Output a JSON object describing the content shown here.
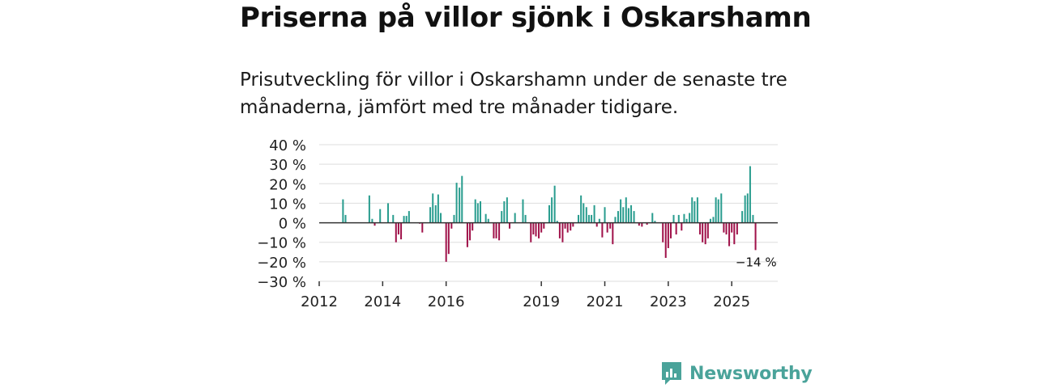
{
  "title": "Priserna på villor sjönk i Oskarshamn",
  "subtitle": "Prisutveckling för villor i Oskarshamn under de senaste tre månaderna, jämfört med tre månader tidigare.",
  "brand": {
    "name": "Newsworthy",
    "icon": "newsworthy-logo-icon"
  },
  "colors": {
    "positive": "#2a9d8f",
    "negative": "#a0124a",
    "grid": "#dddddd",
    "zero": "#333333",
    "brand": "#4aa39a"
  },
  "chart_data": {
    "type": "bar",
    "title": "Priserna på villor sjönk i Oskarshamn",
    "xlabel": "",
    "ylabel": "",
    "ylim": [
      -30,
      40
    ],
    "y_ticks": [
      40,
      30,
      20,
      10,
      0,
      -10,
      -20,
      -30
    ],
    "y_tick_labels": [
      "40 %",
      "30 %",
      "20 %",
      "10 %",
      "0 %",
      "−10 %",
      "−20 %",
      "−30 %"
    ],
    "x_ticks": [
      2012,
      2014,
      2016,
      2019,
      2021,
      2023,
      2025
    ],
    "x_tick_labels": [
      "2012",
      "2014",
      "2016",
      "2019",
      "2021",
      "2023",
      "2025"
    ],
    "last_value_label": "−14 %",
    "grid": true,
    "series": [
      {
        "name": "Prisutveckling",
        "points": [
          {
            "x": 2012.75,
            "y": 12
          },
          {
            "x": 2012.83,
            "y": 4
          },
          {
            "x": 2013.58,
            "y": 14
          },
          {
            "x": 2013.67,
            "y": 2
          },
          {
            "x": 2013.75,
            "y": -1.5
          },
          {
            "x": 2013.92,
            "y": 7
          },
          {
            "x": 2014.17,
            "y": 10
          },
          {
            "x": 2014.33,
            "y": 4
          },
          {
            "x": 2014.42,
            "y": -10
          },
          {
            "x": 2014.5,
            "y": -6
          },
          {
            "x": 2014.58,
            "y": -8.5
          },
          {
            "x": 2014.67,
            "y": 3.5
          },
          {
            "x": 2014.75,
            "y": 3.5
          },
          {
            "x": 2014.83,
            "y": 6
          },
          {
            "x": 2015.17,
            "y": -0.5
          },
          {
            "x": 2015.25,
            "y": -5
          },
          {
            "x": 2015.5,
            "y": 8
          },
          {
            "x": 2015.58,
            "y": 15
          },
          {
            "x": 2015.67,
            "y": 9
          },
          {
            "x": 2015.75,
            "y": 14.5
          },
          {
            "x": 2015.83,
            "y": 5
          },
          {
            "x": 2016.0,
            "y": -20
          },
          {
            "x": 2016.08,
            "y": -16
          },
          {
            "x": 2016.17,
            "y": -3
          },
          {
            "x": 2016.25,
            "y": 4
          },
          {
            "x": 2016.33,
            "y": 20.5
          },
          {
            "x": 2016.42,
            "y": 18
          },
          {
            "x": 2016.5,
            "y": 24
          },
          {
            "x": 2016.67,
            "y": -12.5
          },
          {
            "x": 2016.75,
            "y": -9
          },
          {
            "x": 2016.83,
            "y": -4
          },
          {
            "x": 2016.92,
            "y": 12
          },
          {
            "x": 2017.0,
            "y": 10
          },
          {
            "x": 2017.08,
            "y": 11
          },
          {
            "x": 2017.25,
            "y": 4.5
          },
          {
            "x": 2017.33,
            "y": 2
          },
          {
            "x": 2017.5,
            "y": -8
          },
          {
            "x": 2017.58,
            "y": -8
          },
          {
            "x": 2017.67,
            "y": -9
          },
          {
            "x": 2017.75,
            "y": 6
          },
          {
            "x": 2017.83,
            "y": 11
          },
          {
            "x": 2017.92,
            "y": 13
          },
          {
            "x": 2018.0,
            "y": -3
          },
          {
            "x": 2018.17,
            "y": 5
          },
          {
            "x": 2018.42,
            "y": 12
          },
          {
            "x": 2018.5,
            "y": 4
          },
          {
            "x": 2018.67,
            "y": -10
          },
          {
            "x": 2018.75,
            "y": -6
          },
          {
            "x": 2018.83,
            "y": -7
          },
          {
            "x": 2018.92,
            "y": -8
          },
          {
            "x": 2019.0,
            "y": -5
          },
          {
            "x": 2019.08,
            "y": -3
          },
          {
            "x": 2019.25,
            "y": 9
          },
          {
            "x": 2019.33,
            "y": 13
          },
          {
            "x": 2019.42,
            "y": 19
          },
          {
            "x": 2019.5,
            "y": 1
          },
          {
            "x": 2019.58,
            "y": -8
          },
          {
            "x": 2019.67,
            "y": -10
          },
          {
            "x": 2019.75,
            "y": -3
          },
          {
            "x": 2019.83,
            "y": -5
          },
          {
            "x": 2019.92,
            "y": -4
          },
          {
            "x": 2020.0,
            "y": -2
          },
          {
            "x": 2020.17,
            "y": 4
          },
          {
            "x": 2020.25,
            "y": 14
          },
          {
            "x": 2020.33,
            "y": 10
          },
          {
            "x": 2020.42,
            "y": 8
          },
          {
            "x": 2020.5,
            "y": 4
          },
          {
            "x": 2020.58,
            "y": 4
          },
          {
            "x": 2020.67,
            "y": 9
          },
          {
            "x": 2020.75,
            "y": -2
          },
          {
            "x": 2020.83,
            "y": 2
          },
          {
            "x": 2020.92,
            "y": -7.5
          },
          {
            "x": 2021.0,
            "y": 8
          },
          {
            "x": 2021.08,
            "y": -5
          },
          {
            "x": 2021.17,
            "y": -3
          },
          {
            "x": 2021.25,
            "y": -11
          },
          {
            "x": 2021.33,
            "y": 3
          },
          {
            "x": 2021.42,
            "y": 6
          },
          {
            "x": 2021.5,
            "y": 12
          },
          {
            "x": 2021.58,
            "y": 8
          },
          {
            "x": 2021.67,
            "y": 13
          },
          {
            "x": 2021.75,
            "y": 7.5
          },
          {
            "x": 2021.83,
            "y": 9
          },
          {
            "x": 2021.92,
            "y": 6
          },
          {
            "x": 2022.08,
            "y": -1.5
          },
          {
            "x": 2022.17,
            "y": -2
          },
          {
            "x": 2022.33,
            "y": -1
          },
          {
            "x": 2022.5,
            "y": 5
          },
          {
            "x": 2022.58,
            "y": 1
          },
          {
            "x": 2022.83,
            "y": -10
          },
          {
            "x": 2022.92,
            "y": -18
          },
          {
            "x": 2023.0,
            "y": -13
          },
          {
            "x": 2023.08,
            "y": -8
          },
          {
            "x": 2023.17,
            "y": 4
          },
          {
            "x": 2023.25,
            "y": -6
          },
          {
            "x": 2023.33,
            "y": 4
          },
          {
            "x": 2023.42,
            "y": -4
          },
          {
            "x": 2023.5,
            "y": 4.5
          },
          {
            "x": 2023.58,
            "y": 2
          },
          {
            "x": 2023.67,
            "y": 5
          },
          {
            "x": 2023.75,
            "y": 13
          },
          {
            "x": 2023.83,
            "y": 11
          },
          {
            "x": 2023.92,
            "y": 13
          },
          {
            "x": 2024.0,
            "y": -6
          },
          {
            "x": 2024.08,
            "y": -10
          },
          {
            "x": 2024.17,
            "y": -11
          },
          {
            "x": 2024.25,
            "y": -8
          },
          {
            "x": 2024.33,
            "y": 2
          },
          {
            "x": 2024.42,
            "y": 3
          },
          {
            "x": 2024.5,
            "y": 13
          },
          {
            "x": 2024.58,
            "y": 12
          },
          {
            "x": 2024.67,
            "y": 15
          },
          {
            "x": 2024.75,
            "y": -5
          },
          {
            "x": 2024.83,
            "y": -6
          },
          {
            "x": 2024.92,
            "y": -12
          },
          {
            "x": 2025.0,
            "y": -5
          },
          {
            "x": 2025.08,
            "y": -11
          },
          {
            "x": 2025.17,
            "y": -6
          },
          {
            "x": 2025.33,
            "y": 6
          },
          {
            "x": 2025.42,
            "y": 14
          },
          {
            "x": 2025.5,
            "y": 15
          },
          {
            "x": 2025.58,
            "y": 29
          },
          {
            "x": 2025.67,
            "y": 4
          },
          {
            "x": 2025.75,
            "y": -14
          }
        ]
      }
    ]
  }
}
